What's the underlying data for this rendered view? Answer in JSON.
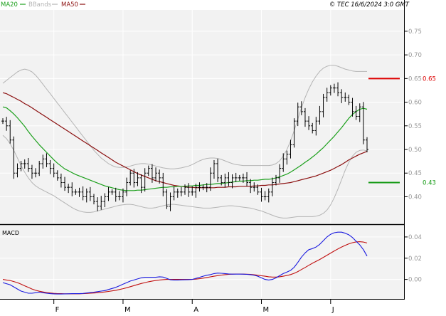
{
  "header": {
    "legend": [
      {
        "label": "MA20",
        "color": "#1ca01c"
      },
      {
        "label": "BBands",
        "color": "#b4b4b4"
      },
      {
        "label": "MA50",
        "color": "#8b0f0f"
      }
    ],
    "copyright": "© TEC 16/6/2024 3:0 GMT"
  },
  "colors": {
    "background": "#f2f2f2",
    "grid": "#ffffff",
    "price": "#000000",
    "ma20": "#1ca01c",
    "ma50": "#8b0f0f",
    "bbands": "#b4b4b4",
    "macd": "#1a1adf",
    "signal": "#c01010",
    "resistance": "#dd0000",
    "support": "#119911"
  },
  "chart_data": [
    {
      "type": "candlestick",
      "panel": "price",
      "y_ticks": [
        "0.75",
        "0.70",
        "0.65",
        "0.60",
        "0.55",
        "0.50",
        "0.45",
        "0.40"
      ],
      "ylim": [
        0.345,
        0.795
      ],
      "x_tick_labels": [
        "F",
        "M",
        "A",
        "M",
        "J"
      ],
      "x_tick_bars": [
        14,
        33,
        52,
        71,
        90
      ],
      "bars_count": 101,
      "close": [
        0.56,
        0.55,
        0.52,
        0.45,
        0.46,
        0.47,
        0.47,
        0.46,
        0.45,
        0.45,
        0.47,
        0.48,
        0.47,
        0.46,
        0.45,
        0.44,
        0.43,
        0.42,
        0.42,
        0.41,
        0.41,
        0.41,
        0.4,
        0.41,
        0.4,
        0.39,
        0.38,
        0.39,
        0.4,
        0.41,
        0.41,
        0.4,
        0.4,
        0.41,
        0.43,
        0.45,
        0.43,
        0.44,
        0.42,
        0.45,
        0.46,
        0.44,
        0.45,
        0.44,
        0.41,
        0.38,
        0.4,
        0.41,
        0.41,
        0.41,
        0.42,
        0.41,
        0.41,
        0.42,
        0.42,
        0.42,
        0.42,
        0.45,
        0.47,
        0.44,
        0.43,
        0.44,
        0.43,
        0.44,
        0.44,
        0.44,
        0.44,
        0.43,
        0.42,
        0.42,
        0.41,
        0.4,
        0.4,
        0.41,
        0.43,
        0.44,
        0.46,
        0.48,
        0.49,
        0.51,
        0.56,
        0.59,
        0.58,
        0.56,
        0.55,
        0.54,
        0.56,
        0.58,
        0.61,
        0.62,
        0.63,
        0.63,
        0.62,
        0.61,
        0.61,
        0.6,
        0.58,
        0.57,
        0.59,
        0.52,
        0.5
      ],
      "series": [
        {
          "name": "MA20",
          "values": [
            0.59,
            0.588,
            0.582,
            0.575,
            0.567,
            0.558,
            0.549,
            0.538,
            0.528,
            0.519,
            0.51,
            0.502,
            0.494,
            0.486,
            0.478,
            0.471,
            0.465,
            0.459,
            0.455,
            0.451,
            0.447,
            0.444,
            0.441,
            0.438,
            0.435,
            0.432,
            0.429,
            0.426,
            0.423,
            0.421,
            0.419,
            0.417,
            0.415,
            0.414,
            0.413,
            0.413,
            0.413,
            0.414,
            0.414,
            0.415,
            0.416,
            0.417,
            0.418,
            0.419,
            0.42,
            0.42,
            0.421,
            0.421,
            0.422,
            0.422,
            0.422,
            0.423,
            0.423,
            0.424,
            0.424,
            0.425,
            0.426,
            0.426,
            0.427,
            0.428,
            0.428,
            0.429,
            0.43,
            0.431,
            0.432,
            0.433,
            0.433,
            0.434,
            0.434,
            0.435,
            0.435,
            0.436,
            0.437,
            0.437,
            0.438,
            0.44,
            0.442,
            0.445,
            0.448,
            0.452,
            0.457,
            0.462,
            0.467,
            0.473,
            0.478,
            0.484,
            0.49,
            0.497,
            0.504,
            0.512,
            0.52,
            0.528,
            0.537,
            0.546,
            0.556,
            0.566,
            0.574,
            0.58,
            0.585,
            0.587,
            0.585
          ]
        },
        {
          "name": "MA50",
          "values": [
            0.62,
            0.618,
            0.614,
            0.61,
            0.606,
            0.602,
            0.597,
            0.593,
            0.588,
            0.583,
            0.578,
            0.573,
            0.568,
            0.563,
            0.558,
            0.553,
            0.548,
            0.543,
            0.538,
            0.533,
            0.528,
            0.523,
            0.518,
            0.513,
            0.508,
            0.503,
            0.498,
            0.493,
            0.488,
            0.483,
            0.478,
            0.473,
            0.469,
            0.465,
            0.461,
            0.457,
            0.453,
            0.449,
            0.446,
            0.443,
            0.44,
            0.437,
            0.434,
            0.432,
            0.43,
            0.428,
            0.426,
            0.424,
            0.423,
            0.422,
            0.421,
            0.42,
            0.42,
            0.419,
            0.419,
            0.419,
            0.419,
            0.419,
            0.419,
            0.42,
            0.42,
            0.42,
            0.421,
            0.421,
            0.421,
            0.422,
            0.422,
            0.422,
            0.422,
            0.423,
            0.423,
            0.424,
            0.424,
            0.425,
            0.425,
            0.426,
            0.427,
            0.428,
            0.429,
            0.43,
            0.432,
            0.434,
            0.436,
            0.438,
            0.44,
            0.442,
            0.444,
            0.447,
            0.45,
            0.453,
            0.456,
            0.46,
            0.464,
            0.468,
            0.473,
            0.478,
            0.482,
            0.486,
            0.49,
            0.493,
            0.496
          ]
        },
        {
          "name": "BBands upper",
          "values": [
            0.64,
            0.646,
            0.652,
            0.658,
            0.664,
            0.668,
            0.67,
            0.668,
            0.664,
            0.657,
            0.648,
            0.638,
            0.628,
            0.618,
            0.608,
            0.598,
            0.588,
            0.578,
            0.568,
            0.558,
            0.548,
            0.538,
            0.528,
            0.518,
            0.508,
            0.498,
            0.49,
            0.482,
            0.476,
            0.47,
            0.466,
            0.463,
            0.462,
            0.462,
            0.463,
            0.465,
            0.467,
            0.469,
            0.47,
            0.47,
            0.469,
            0.467,
            0.465,
            0.463,
            0.461,
            0.46,
            0.459,
            0.459,
            0.46,
            0.461,
            0.463,
            0.465,
            0.468,
            0.472,
            0.476,
            0.479,
            0.481,
            0.482,
            0.482,
            0.481,
            0.479,
            0.476,
            0.473,
            0.47,
            0.468,
            0.467,
            0.466,
            0.466,
            0.466,
            0.466,
            0.466,
            0.466,
            0.466,
            0.466,
            0.467,
            0.47,
            0.476,
            0.486,
            0.5,
            0.518,
            0.54,
            0.564,
            0.588,
            0.61,
            0.628,
            0.643,
            0.655,
            0.665,
            0.672,
            0.676,
            0.678,
            0.678,
            0.676,
            0.673,
            0.67,
            0.668,
            0.666,
            0.665,
            0.665,
            0.665,
            0.665
          ]
        },
        {
          "name": "BBands lower",
          "values": [
            0.53,
            0.523,
            0.512,
            0.498,
            0.482,
            0.466,
            0.452,
            0.44,
            0.43,
            0.423,
            0.418,
            0.414,
            0.41,
            0.406,
            0.402,
            0.397,
            0.392,
            0.387,
            0.382,
            0.377,
            0.373,
            0.37,
            0.368,
            0.367,
            0.367,
            0.368,
            0.37,
            0.372,
            0.374,
            0.376,
            0.378,
            0.38,
            0.382,
            0.383,
            0.384,
            0.384,
            0.383,
            0.381,
            0.379,
            0.377,
            0.376,
            0.376,
            0.377,
            0.379,
            0.381,
            0.383,
            0.384,
            0.384,
            0.383,
            0.382,
            0.381,
            0.38,
            0.379,
            0.378,
            0.377,
            0.376,
            0.376,
            0.376,
            0.377,
            0.378,
            0.379,
            0.38,
            0.381,
            0.381,
            0.38,
            0.379,
            0.378,
            0.377,
            0.376,
            0.374,
            0.372,
            0.37,
            0.367,
            0.364,
            0.361,
            0.358,
            0.356,
            0.355,
            0.355,
            0.356,
            0.357,
            0.358,
            0.358,
            0.358,
            0.358,
            0.358,
            0.359,
            0.361,
            0.365,
            0.372,
            0.383,
            0.398,
            0.416,
            0.436,
            0.456,
            0.473,
            0.486,
            0.494,
            0.498,
            0.499,
            0.497
          ]
        }
      ],
      "levels": [
        {
          "label": "0.65",
          "value": 0.65,
          "role": "resistance"
        },
        {
          "label": "0.43",
          "value": 0.43,
          "role": "support"
        }
      ]
    },
    {
      "type": "line",
      "panel": "macd",
      "title": "MACD",
      "y_ticks": [
        "0.04",
        "0.02",
        "0.00"
      ],
      "ylim": [
        -0.017,
        0.05
      ],
      "series": [
        {
          "name": "MACD",
          "values": [
            -0.003,
            -0.004,
            -0.005,
            -0.007,
            -0.009,
            -0.011,
            -0.012,
            -0.013,
            -0.013,
            -0.0125,
            -0.012,
            -0.0125,
            -0.013,
            -0.0134,
            -0.0136,
            -0.0137,
            -0.0137,
            -0.0136,
            -0.0135,
            -0.0134,
            -0.0134,
            -0.0134,
            -0.0132,
            -0.0128,
            -0.0124,
            -0.012,
            -0.0115,
            -0.011,
            -0.0105,
            -0.0095,
            -0.0085,
            -0.0075,
            -0.006,
            -0.0045,
            -0.003,
            -0.0015,
            -0.0005,
            0.0005,
            0.0015,
            0.002,
            0.002,
            0.002,
            0.002,
            0.0025,
            0.0022,
            0.001,
            -0.0003,
            -0.0005,
            -0.0005,
            -0.0004,
            -0.0003,
            -0.0002,
            0.0,
            0.001,
            0.002,
            0.003,
            0.004,
            0.0045,
            0.0055,
            0.006,
            0.0058,
            0.0055,
            0.0052,
            0.005,
            0.005,
            0.005,
            0.005,
            0.0048,
            0.0045,
            0.004,
            0.003,
            0.0015,
            0.0,
            -0.0005,
            0.0,
            0.0015,
            0.0035,
            0.0055,
            0.007,
            0.0085,
            0.0115,
            0.016,
            0.021,
            0.025,
            0.028,
            0.029,
            0.0305,
            0.033,
            0.0365,
            0.04,
            0.0425,
            0.044,
            0.0445,
            0.0445,
            0.0435,
            0.042,
            0.0395,
            0.036,
            0.0325,
            0.028,
            0.022
          ]
        },
        {
          "name": "Signal",
          "values": [
            0.0,
            -0.0005,
            -0.001,
            -0.002,
            -0.003,
            -0.0045,
            -0.006,
            -0.0075,
            -0.009,
            -0.0102,
            -0.0111,
            -0.0118,
            -0.0124,
            -0.0128,
            -0.0131,
            -0.0133,
            -0.0134,
            -0.0135,
            -0.0135,
            -0.0135,
            -0.0135,
            -0.0135,
            -0.0134,
            -0.0132,
            -0.013,
            -0.0128,
            -0.0125,
            -0.0122,
            -0.0118,
            -0.0113,
            -0.0108,
            -0.0102,
            -0.0095,
            -0.0087,
            -0.0078,
            -0.0068,
            -0.0058,
            -0.0048,
            -0.0038,
            -0.003,
            -0.0022,
            -0.0015,
            -0.001,
            -0.0005,
            -0.0002,
            0.0,
            0.0,
            0.0,
            0.0,
            0.0,
            0.0,
            0.0,
            0.0,
            0.0003,
            0.0007,
            0.0012,
            0.0018,
            0.0024,
            0.003,
            0.0036,
            0.0041,
            0.0045,
            0.0048,
            0.005,
            0.0051,
            0.0051,
            0.005,
            0.0049,
            0.0047,
            0.0044,
            0.004,
            0.0035,
            0.003,
            0.0025,
            0.0022,
            0.0022,
            0.0025,
            0.003,
            0.0037,
            0.0046,
            0.0058,
            0.0074,
            0.0093,
            0.0113,
            0.0133,
            0.0152,
            0.017,
            0.0188,
            0.0208,
            0.0228,
            0.0248,
            0.0268,
            0.0287,
            0.0305,
            0.0321,
            0.0335,
            0.0346,
            0.0353,
            0.0355,
            0.0352,
            0.0343
          ]
        }
      ],
      "x_tick_labels": [
        "F",
        "M",
        "A",
        "M",
        "J"
      ]
    }
  ]
}
